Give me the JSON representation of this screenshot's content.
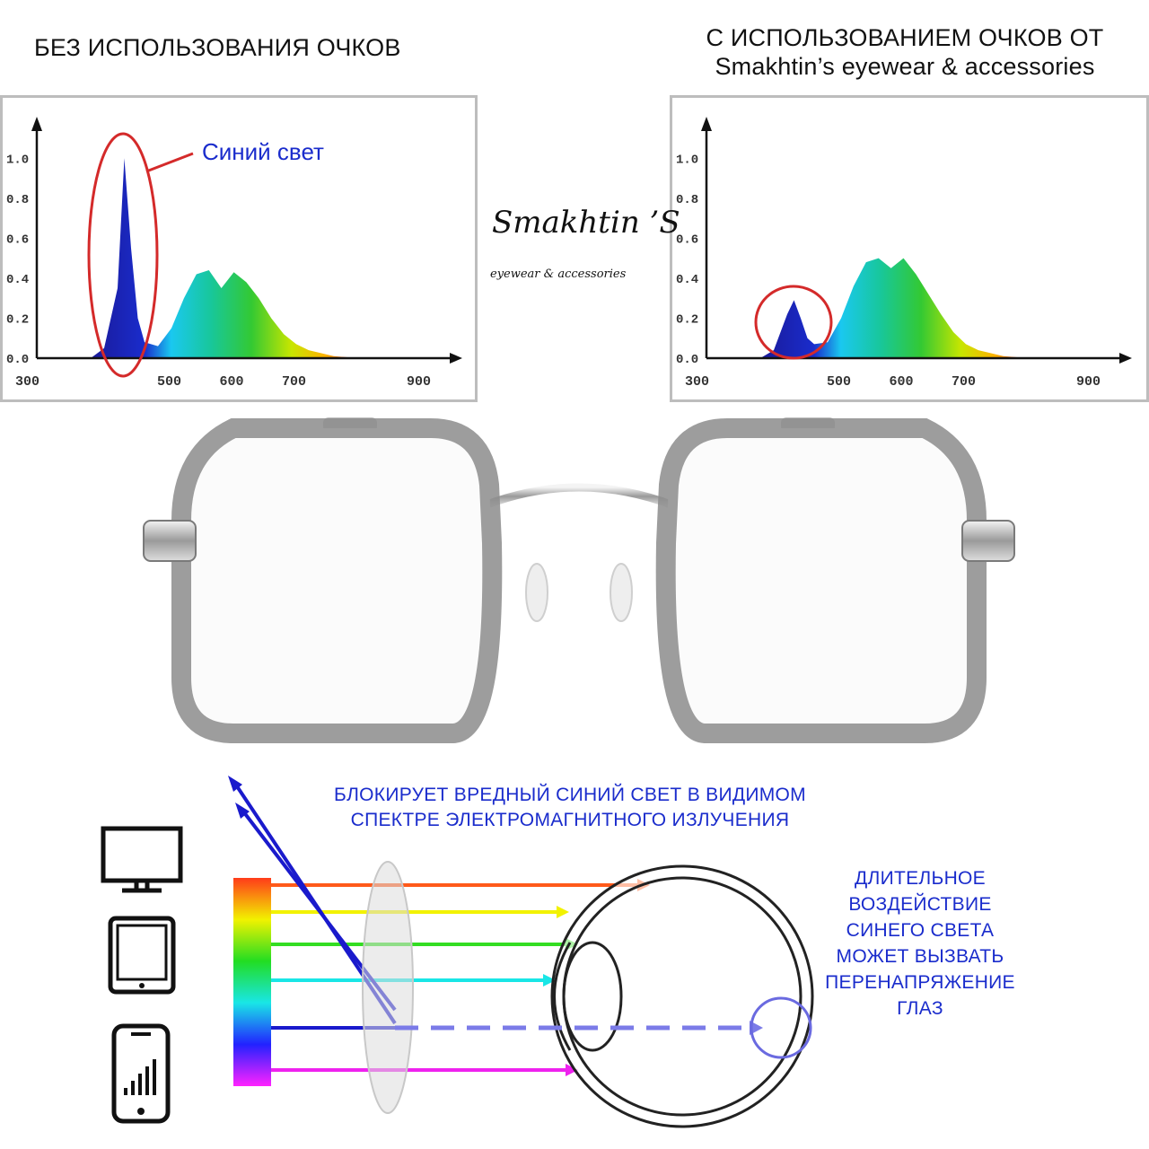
{
  "header_left": "БЕЗ ИСПОЛЬЗОВАНИЯ ОЧКОВ",
  "header_right": {
    "line1": "С ИСПОЛЬЗОВАНИЕМ ОЧКОВ ОТ",
    "line2": "Smakhtin’s eyewear & accessories"
  },
  "logo": {
    "name": "Smakhtin ’S",
    "tagline": "eyewear & accessories"
  },
  "chart_data": [
    {
      "type": "area",
      "annotation": "Синий свет",
      "y_ticks": [
        "1.0",
        "0.8",
        "0.6",
        "0.4",
        "0.2",
        "0.0"
      ],
      "x_ticks": [
        "300",
        "500",
        "600",
        "700",
        "900"
      ],
      "x": [
        380,
        400,
        420,
        430,
        440,
        450,
        460,
        480,
        500,
        520,
        540,
        560,
        580,
        600,
        620,
        640,
        660,
        680,
        700,
        720,
        760,
        800
      ],
      "y": [
        0.0,
        0.05,
        0.35,
        1.0,
        0.55,
        0.2,
        0.08,
        0.06,
        0.15,
        0.3,
        0.42,
        0.44,
        0.35,
        0.43,
        0.38,
        0.3,
        0.2,
        0.12,
        0.07,
        0.04,
        0.01,
        0.0
      ],
      "ylim": [
        0,
        1.1
      ]
    },
    {
      "type": "area",
      "y_ticks": [
        "1.0",
        "0.8",
        "0.6",
        "0.4",
        "0.2",
        "0.0"
      ],
      "x_ticks": [
        "300",
        "500",
        "600",
        "700",
        "900"
      ],
      "x": [
        380,
        400,
        420,
        430,
        440,
        450,
        460,
        480,
        500,
        520,
        540,
        560,
        580,
        600,
        620,
        640,
        660,
        680,
        700,
        720,
        760,
        800
      ],
      "y": [
        0.0,
        0.04,
        0.22,
        0.29,
        0.2,
        0.1,
        0.07,
        0.08,
        0.2,
        0.36,
        0.48,
        0.5,
        0.45,
        0.5,
        0.42,
        0.32,
        0.22,
        0.13,
        0.07,
        0.04,
        0.01,
        0.0
      ],
      "ylim": [
        0,
        1.1
      ]
    }
  ],
  "bottom": {
    "caption": [
      "БЛОКИРУЕТ ВРЕДНЫЙ СИНИЙ СВЕТ В ВИДИМОМ",
      "СПЕКТРЕ ЭЛЕКТРОМАГНИТНОГО ИЗЛУЧЕНИЯ"
    ],
    "warning": [
      "ДЛИТЕЛЬНОЕ",
      "ВОЗДЕЙСТВИЕ",
      "СИНЕГО СВЕТА",
      "МОЖЕТ ВЫЗВАТЬ",
      "ПЕРЕНАПРЯЖЕНИЕ",
      "ГЛАЗ"
    ],
    "devices": [
      "monitor-icon",
      "tablet-icon",
      "smartphone-icon"
    ],
    "ray_colors": [
      "#ff5a1a",
      "#f2f200",
      "#33dd22",
      "#19e6e6",
      "#1a1acc",
      "#ee22ee"
    ]
  },
  "colors": {
    "text_blue": "#1a2ccc",
    "circle_red": "#d42a2a"
  }
}
